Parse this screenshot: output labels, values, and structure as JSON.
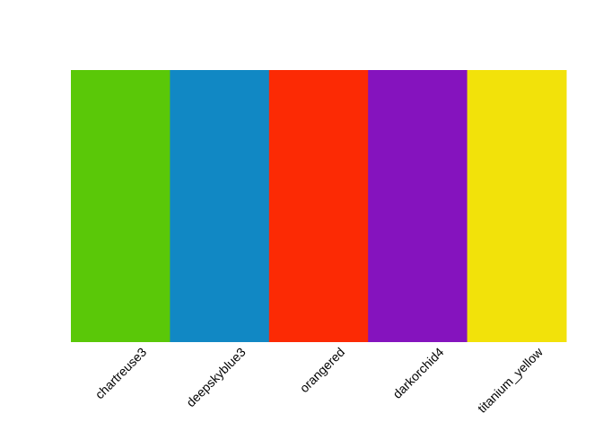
{
  "chart_data": {
    "type": "bar",
    "title": "",
    "xlabel": "",
    "ylabel": "",
    "grid": false,
    "categories": [
      "chartreuse3",
      "deepskyblue3",
      "orangered",
      "darkorchid4",
      "titanium_yellow"
    ],
    "values": [
      1,
      1,
      1,
      1,
      1
    ],
    "colors": [
      "#5AC808",
      "#1188C4",
      "#FC2A04",
      "#8513BE",
      "#F2E20A"
    ]
  }
}
